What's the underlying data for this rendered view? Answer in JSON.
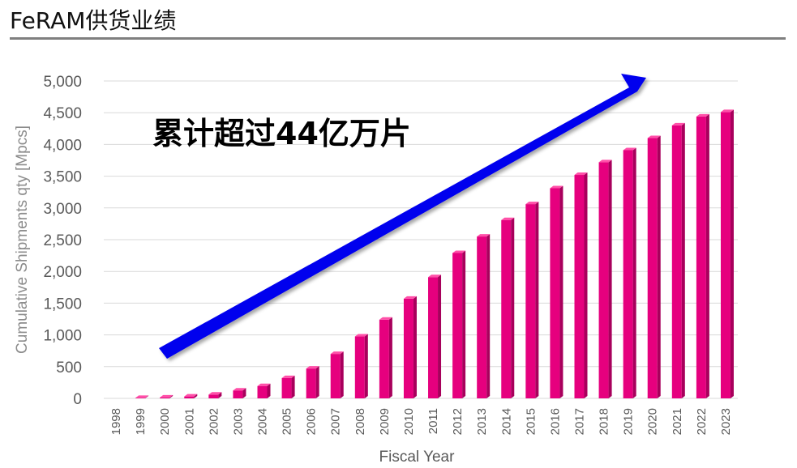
{
  "page": {
    "title": "FeRAM供货业绩"
  },
  "chart_data": {
    "type": "bar",
    "title": "",
    "xlabel": "Fiscal Year",
    "ylabel": "Cumulative Shipments qty [Mpcs]",
    "ylim": [
      0,
      5000
    ],
    "yticks": [
      "0",
      "500",
      "1,000",
      "1,500",
      "2,000",
      "2,500",
      "3,000",
      "3,500",
      "4,000",
      "4,500",
      "5,000"
    ],
    "categories": [
      "1998",
      "1999",
      "2000",
      "2001",
      "2002",
      "2003",
      "2004",
      "2005",
      "2006",
      "2007",
      "2008",
      "2009",
      "2010",
      "2011",
      "2012",
      "2013",
      "2014",
      "2015",
      "2016",
      "2017",
      "2018",
      "2019",
      "2020",
      "2021",
      "2022",
      "2023"
    ],
    "values": [
      0,
      8,
      15,
      30,
      60,
      125,
      195,
      320,
      470,
      700,
      975,
      1240,
      1570,
      1910,
      2290,
      2550,
      2810,
      3060,
      3310,
      3520,
      3720,
      3910,
      4100,
      4300,
      4440,
      4510
    ],
    "annotation": "累计超过44亿万片",
    "grid": true,
    "legend": "none",
    "colors": {
      "bar": "#e6007e",
      "bar_side": "#a8005c",
      "bar_top": "#ff4fa8",
      "arrow": "#0000ee",
      "grid": "#d9d9d9"
    }
  }
}
